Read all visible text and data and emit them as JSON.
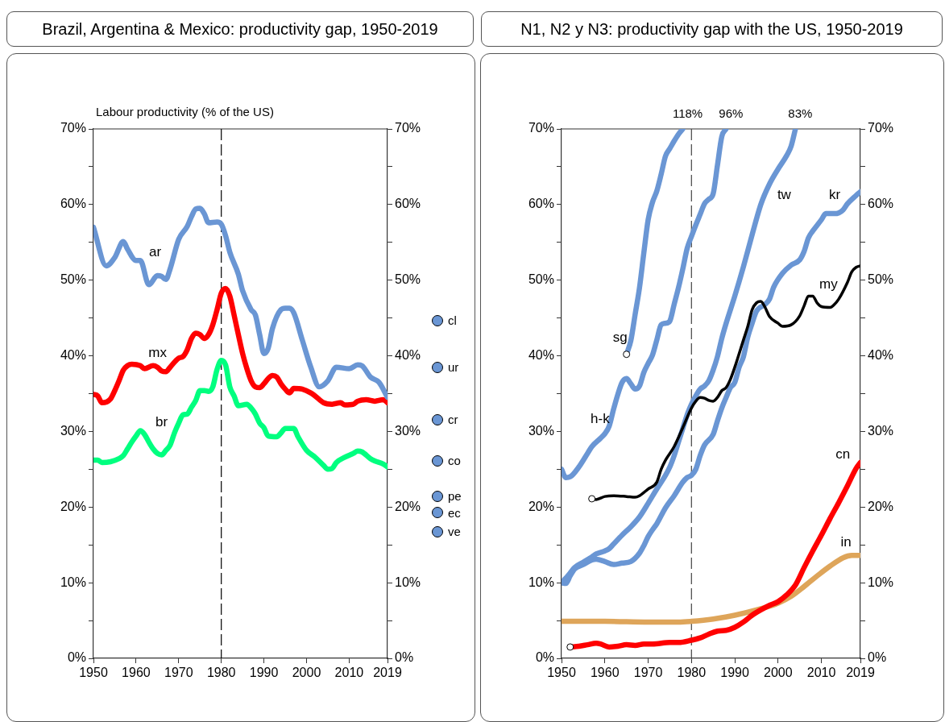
{
  "chart_data": [
    {
      "type": "line",
      "title": "Brazil, Argentina & Mexico: productivity gap, 1950-2019",
      "ylabel": "Labour productivity (% of the US)",
      "xlim": [
        1950,
        2019
      ],
      "xticks": [
        1950,
        1960,
        1970,
        1980,
        1990,
        2000,
        2010,
        2019
      ],
      "ylim": [
        0,
        70
      ],
      "yticks": [
        {
          "value": 0,
          "label": "0%"
        },
        {
          "value": 5,
          "label": null
        },
        {
          "value": 10,
          "label": "10%"
        },
        {
          "value": 15,
          "label": null
        },
        {
          "value": 20,
          "label": "20%"
        },
        {
          "value": 25,
          "label": null
        },
        {
          "value": 30,
          "label": "30%"
        },
        {
          "value": 35,
          "label": null
        },
        {
          "value": 40,
          "label": "40%"
        },
        {
          "value": 45,
          "label": null
        },
        {
          "value": 50,
          "label": "50%"
        },
        {
          "value": 55,
          "label": null
        },
        {
          "value": 60,
          "label": "60%"
        },
        {
          "value": 65,
          "label": null
        },
        {
          "value": 70,
          "label": "70%"
        }
      ],
      "y2lim": [
        0,
        70
      ],
      "y2ticks": [
        {
          "value": 0,
          "label": "0%"
        },
        {
          "value": 5,
          "label": null
        },
        {
          "value": 10,
          "label": "10%"
        },
        {
          "value": 15,
          "label": null
        },
        {
          "value": 20,
          "label": "20%"
        },
        {
          "value": 25,
          "label": null
        },
        {
          "value": 30,
          "label": "30%"
        },
        {
          "value": 35,
          "label": null
        },
        {
          "value": 40,
          "label": "40%"
        },
        {
          "value": 45,
          "label": null
        },
        {
          "value": 50,
          "label": "50%"
        },
        {
          "value": 55,
          "label": null
        },
        {
          "value": 60,
          "label": "60%"
        },
        {
          "value": 65,
          "label": null
        },
        {
          "value": 70,
          "label": "70%"
        }
      ],
      "legend": false,
      "grid": false,
      "ref_lines": [
        {
          "axis": "x",
          "value": 1980,
          "line_style": "dashed",
          "color": "#000000"
        }
      ],
      "annotations": [
        "cl",
        "ur",
        "cr",
        "co",
        "pe",
        "ec",
        "ve"
      ],
      "series": [
        {
          "name": "ar",
          "color": "#6a96d4",
          "x": [
            1950,
            1953,
            1955,
            1957,
            1958,
            1960,
            1961,
            1963,
            1965,
            1966,
            1967,
            1968,
            1970,
            1972,
            1973,
            1974,
            1975,
            1976,
            1977,
            1979,
            1980,
            1981,
            1982,
            1984,
            1985,
            1987,
            1988,
            1989,
            1990,
            1991,
            1992,
            1994,
            1995,
            1996,
            1997,
            1999,
            2001,
            2003,
            2005,
            2007,
            2010,
            2012,
            2013,
            2015,
            2017,
            2019
          ],
          "values": [
            57.0,
            51.9,
            53.0,
            55.1,
            54.1,
            52.6,
            52.6,
            49.4,
            50.6,
            50.5,
            50.1,
            51.5,
            55.4,
            57.1,
            58.4,
            59.4,
            59.5,
            58.8,
            57.6,
            57.7,
            57.4,
            55.9,
            53.7,
            50.8,
            48.6,
            46.1,
            45.4,
            42.8,
            40.3,
            41.0,
            43.6,
            46.1,
            46.3,
            46.3,
            45.7,
            42.1,
            38.5,
            35.9,
            36.7,
            38.5,
            38.3,
            38.8,
            38.7,
            37.2,
            36.5,
            34.5
          ]
        },
        {
          "name": "mx",
          "color": "#ff0000",
          "x": [
            1950,
            1951,
            1952,
            1954,
            1955,
            1956,
            1957,
            1958,
            1959,
            1961,
            1962,
            1964,
            1965,
            1966,
            1967,
            1968,
            1970,
            1971,
            1972,
            1973,
            1974,
            1975,
            1976,
            1977,
            1978,
            1979,
            1980,
            1981,
            1982,
            1983,
            1984,
            1985,
            1986,
            1987,
            1988,
            1989,
            1990,
            1991,
            1992,
            1993,
            1994,
            1995,
            1996,
            1997,
            1999,
            2001,
            2002,
            2004,
            2006,
            2008,
            2009,
            2011,
            2012,
            2014,
            2016,
            2018,
            2019
          ],
          "values": [
            34.9,
            34.7,
            33.8,
            34.3,
            35.4,
            36.7,
            38.1,
            38.7,
            38.9,
            38.7,
            38.3,
            38.7,
            38.5,
            38.0,
            37.9,
            38.5,
            39.7,
            39.9,
            40.8,
            42.3,
            43.0,
            42.8,
            42.3,
            42.8,
            44.1,
            46.1,
            48.3,
            48.9,
            47.9,
            45.4,
            42.8,
            40.3,
            38.3,
            36.7,
            35.9,
            35.8,
            36.3,
            37.0,
            37.4,
            37.2,
            36.3,
            35.6,
            35.1,
            35.7,
            35.6,
            35.1,
            34.7,
            33.8,
            33.6,
            33.8,
            33.5,
            33.6,
            34.0,
            34.2,
            34.0,
            34.2,
            33.8
          ]
        },
        {
          "name": "br",
          "color": "#00ff7f",
          "x": [
            1950,
            1951,
            1952,
            1954,
            1956,
            1957,
            1958,
            1959,
            1960,
            1961,
            1962,
            1963,
            1964,
            1965,
            1966,
            1967,
            1968,
            1969,
            1970,
            1971,
            1972,
            1973,
            1974,
            1975,
            1976,
            1977,
            1978,
            1979,
            1980,
            1981,
            1982,
            1983,
            1984,
            1986,
            1987,
            1988,
            1989,
            1990,
            1991,
            1993,
            1994,
            1995,
            1997,
            1998,
            2000,
            2002,
            2004,
            2005,
            2006,
            2007,
            2009,
            2011,
            2012,
            2013,
            2015,
            2016,
            2018,
            2019
          ],
          "values": [
            26.2,
            26.2,
            25.9,
            26.0,
            26.4,
            26.8,
            27.7,
            28.6,
            29.4,
            30.1,
            29.6,
            28.6,
            27.7,
            27.1,
            26.9,
            27.5,
            28.2,
            29.8,
            31.1,
            32.2,
            32.3,
            33.2,
            34.1,
            35.4,
            35.4,
            35.3,
            35.9,
            38.2,
            39.4,
            38.8,
            35.9,
            34.7,
            33.4,
            33.6,
            33.1,
            32.3,
            31.1,
            30.5,
            29.4,
            29.3,
            29.8,
            30.4,
            30.4,
            29.3,
            27.5,
            26.6,
            25.5,
            25.0,
            25.1,
            25.9,
            26.6,
            27.1,
            27.4,
            27.3,
            26.4,
            26.1,
            25.7,
            25.3
          ]
        }
      ]
    },
    {
      "type": "line",
      "title": "N1, N2 y N3: productivity gap with the US, 1950-2019",
      "xlim": [
        1950,
        2019
      ],
      "xticks": [
        1950,
        1960,
        1970,
        1980,
        1990,
        2000,
        2010,
        2019
      ],
      "ylim": [
        0,
        70
      ],
      "yticks": [
        {
          "value": 0,
          "label": "0%"
        },
        {
          "value": 5,
          "label": null
        },
        {
          "value": 10,
          "label": "10%"
        },
        {
          "value": 15,
          "label": null
        },
        {
          "value": 20,
          "label": "20%"
        },
        {
          "value": 25,
          "label": null
        },
        {
          "value": 30,
          "label": "30%"
        },
        {
          "value": 35,
          "label": null
        },
        {
          "value": 40,
          "label": "40%"
        },
        {
          "value": 45,
          "label": null
        },
        {
          "value": 50,
          "label": "50%"
        },
        {
          "value": 55,
          "label": null
        },
        {
          "value": 60,
          "label": "60%"
        },
        {
          "value": 65,
          "label": null
        },
        {
          "value": 70,
          "label": "70%"
        }
      ],
      "y2lim": [
        0,
        70
      ],
      "y2ticks": [
        {
          "value": 0,
          "label": "0%"
        },
        {
          "value": 5,
          "label": null
        },
        {
          "value": 10,
          "label": "10%"
        },
        {
          "value": 15,
          "label": null
        },
        {
          "value": 20,
          "label": "20%"
        },
        {
          "value": 25,
          "label": null
        },
        {
          "value": 30,
          "label": "30%"
        },
        {
          "value": 35,
          "label": null
        },
        {
          "value": 40,
          "label": "40%"
        },
        {
          "value": 45,
          "label": null
        },
        {
          "value": 50,
          "label": "50%"
        },
        {
          "value": 55,
          "label": null
        },
        {
          "value": 60,
          "label": "60%"
        },
        {
          "value": 65,
          "label": null
        },
        {
          "value": 70,
          "label": "70%"
        }
      ],
      "legend": false,
      "grid": false,
      "ref_lines": [
        {
          "axis": "x",
          "value": 1980,
          "line_style": "dashed",
          "color": "#444444"
        }
      ],
      "annotations": [
        {
          "text": "118%",
          "x": 1978,
          "y": 70
        },
        {
          "text": "96%",
          "x": 1988,
          "y": 70
        },
        {
          "text": "83%",
          "x": 2004,
          "y": 70
        }
      ],
      "series": [
        {
          "name": "sg",
          "color": "#6a96d4",
          "x": [
            1965,
            1966,
            1967,
            1968,
            1969,
            1970,
            1971,
            1972,
            1973,
            1974,
            1975,
            1976,
            1977,
            1978
          ],
          "values": [
            40.2,
            42.0,
            45.5,
            49.0,
            53.6,
            58.0,
            60.3,
            61.8,
            64.0,
            66.4,
            67.4,
            68.4,
            69.3,
            70
          ]
        },
        {
          "name": "h-k",
          "color": "#6a96d4",
          "x": [
            1950,
            1951,
            1952,
            1954,
            1956,
            1957,
            1959,
            1960,
            1961,
            1962,
            1963,
            1964,
            1965,
            1966,
            1967,
            1968,
            1969,
            1970,
            1971,
            1972,
            1973,
            1974,
            1975,
            1976,
            1977,
            1978,
            1979,
            1980,
            1981,
            1982,
            1983,
            1984,
            1985,
            1986,
            1987,
            1988
          ],
          "values": [
            25.0,
            23.9,
            24.0,
            25.3,
            27.1,
            28.0,
            29.1,
            29.7,
            30.7,
            32.9,
            34.9,
            36.5,
            37.0,
            36.3,
            35.6,
            36.0,
            37.8,
            39.0,
            40.1,
            42.1,
            44.1,
            44.3,
            44.6,
            46.8,
            49.0,
            51.5,
            54.2,
            55.8,
            57.3,
            58.7,
            60.1,
            60.7,
            61.4,
            65.2,
            69.0,
            70
          ]
        },
        {
          "name": "tw",
          "color": "#6a96d4",
          "x": [
            1950,
            1951,
            1952,
            1953,
            1955,
            1957,
            1958,
            1960,
            1961,
            1962,
            1964,
            1966,
            1968,
            1970,
            1972,
            1974,
            1975,
            1976,
            1977,
            1978,
            1979,
            1980,
            1981,
            1982,
            1983,
            1984,
            1985,
            1986,
            1987,
            1988,
            1990,
            1992,
            1994,
            1996,
            1998,
            2000,
            2002,
            2003,
            2004
          ],
          "values": [
            10.0,
            10.6,
            11.3,
            12.0,
            12.7,
            13.4,
            13.8,
            14.2,
            14.5,
            15.1,
            16.3,
            17.4,
            18.7,
            20.5,
            22.4,
            24.2,
            25.3,
            26.8,
            28.6,
            30.4,
            32.2,
            33.6,
            34.7,
            35.6,
            36.0,
            36.7,
            38.1,
            39.9,
            42.3,
            44.3,
            47.9,
            51.8,
            56.0,
            60.0,
            62.7,
            64.7,
            66.5,
            67.7,
            70
          ]
        },
        {
          "name": "kr",
          "color": "#6a96d4",
          "x": [
            1950,
            1951,
            1952,
            1953,
            1955,
            1957,
            1958,
            1960,
            1962,
            1964,
            1966,
            1968,
            1969,
            1970,
            1971,
            1972,
            1974,
            1976,
            1978,
            1979,
            1980,
            1981,
            1982,
            1983,
            1985,
            1986,
            1987,
            1988,
            1989,
            1990,
            1991,
            1992,
            1993,
            1994,
            1995,
            1997,
            1998,
            1999,
            2001,
            2003,
            2005,
            2006,
            2007,
            2008,
            2010,
            2011,
            2013,
            2014,
            2015,
            2016,
            2018,
            2019
          ],
          "values": [
            10.0,
            9.9,
            10.9,
            11.8,
            12.4,
            13.0,
            13.1,
            12.8,
            12.4,
            12.6,
            12.8,
            13.9,
            14.9,
            16.1,
            17.0,
            17.8,
            19.9,
            21.5,
            23.3,
            23.9,
            24.2,
            25.0,
            26.8,
            28.2,
            29.6,
            31.4,
            33.1,
            34.5,
            35.8,
            36.5,
            38.5,
            39.9,
            42.5,
            44.3,
            45.9,
            46.8,
            47.5,
            49.1,
            50.9,
            52.0,
            52.7,
            53.8,
            55.6,
            56.5,
            58.0,
            58.8,
            58.8,
            58.9,
            59.3,
            60.1,
            61.2,
            61.7
          ]
        },
        {
          "name": "my",
          "color": "#000000",
          "x": [
            1957,
            1958,
            1960,
            1962,
            1965,
            1967,
            1968,
            1970,
            1972,
            1973,
            1974,
            1976,
            1978,
            1980,
            1981,
            1982,
            1983,
            1984,
            1985,
            1986,
            1987,
            1988,
            1989,
            1990,
            1992,
            1993,
            1994,
            1995,
            1996,
            1997,
            1998,
            2000,
            2001,
            2003,
            2005,
            2006,
            2007,
            2008,
            2009,
            2010,
            2012,
            2013,
            2014,
            2016,
            2017,
            2018,
            2019
          ],
          "values": [
            21.1,
            21.0,
            21.4,
            21.5,
            21.4,
            21.3,
            21.5,
            22.4,
            23.3,
            25.0,
            26.2,
            28.0,
            30.5,
            33.1,
            34.0,
            34.5,
            34.4,
            34.1,
            34.0,
            34.5,
            35.4,
            35.8,
            36.9,
            38.5,
            42.1,
            43.9,
            46.1,
            47.0,
            47.2,
            46.4,
            45.2,
            44.3,
            43.9,
            44.1,
            45.3,
            46.6,
            47.9,
            47.9,
            47.0,
            46.5,
            46.4,
            46.8,
            47.5,
            49.7,
            51.1,
            51.7,
            51.9
          ]
        },
        {
          "name": "cn",
          "color": "#ff0000",
          "x": [
            1952,
            1954,
            1956,
            1958,
            1959,
            1961,
            1963,
            1965,
            1967,
            1969,
            1971,
            1975,
            1977,
            1980,
            1982,
            1984,
            1986,
            1988,
            1990,
            1992,
            1994,
            1996,
            1998,
            2000,
            2002,
            2004,
            2006,
            2008,
            2010,
            2012,
            2014,
            2016,
            2018,
            2019
          ],
          "values": [
            1.5,
            1.6,
            1.8,
            2.0,
            1.9,
            1.5,
            1.6,
            1.8,
            1.7,
            1.9,
            1.9,
            2.1,
            2.1,
            2.4,
            2.7,
            3.2,
            3.6,
            3.7,
            4.1,
            4.8,
            5.7,
            6.4,
            7.0,
            7.5,
            8.4,
            9.7,
            12.0,
            14.2,
            16.3,
            18.5,
            20.6,
            22.8,
            25.1,
            25.9
          ]
        },
        {
          "name": "in",
          "color": "#dea55a",
          "x": [
            1950,
            1960,
            1970,
            1977,
            1980,
            1985,
            1990,
            1995,
            2000,
            2003,
            2006,
            2009,
            2012,
            2015,
            2017,
            2019
          ],
          "values": [
            4.9,
            4.9,
            4.8,
            4.8,
            4.9,
            5.2,
            5.7,
            6.4,
            7.3,
            8.2,
            9.5,
            10.9,
            12.2,
            13.3,
            13.6,
            13.6
          ]
        },
        {
          "type": "scatter",
          "color": "#ffffff",
          "x": [
            1965
          ],
          "values": [
            40.2
          ]
        },
        {
          "type": "scatter",
          "color": "#ffffff",
          "x": [
            1957
          ],
          "values": [
            21.1
          ]
        },
        {
          "type": "scatter",
          "color": "#ffffff",
          "x": [
            1952
          ],
          "values": [
            1.5
          ]
        }
      ]
    }
  ]
}
